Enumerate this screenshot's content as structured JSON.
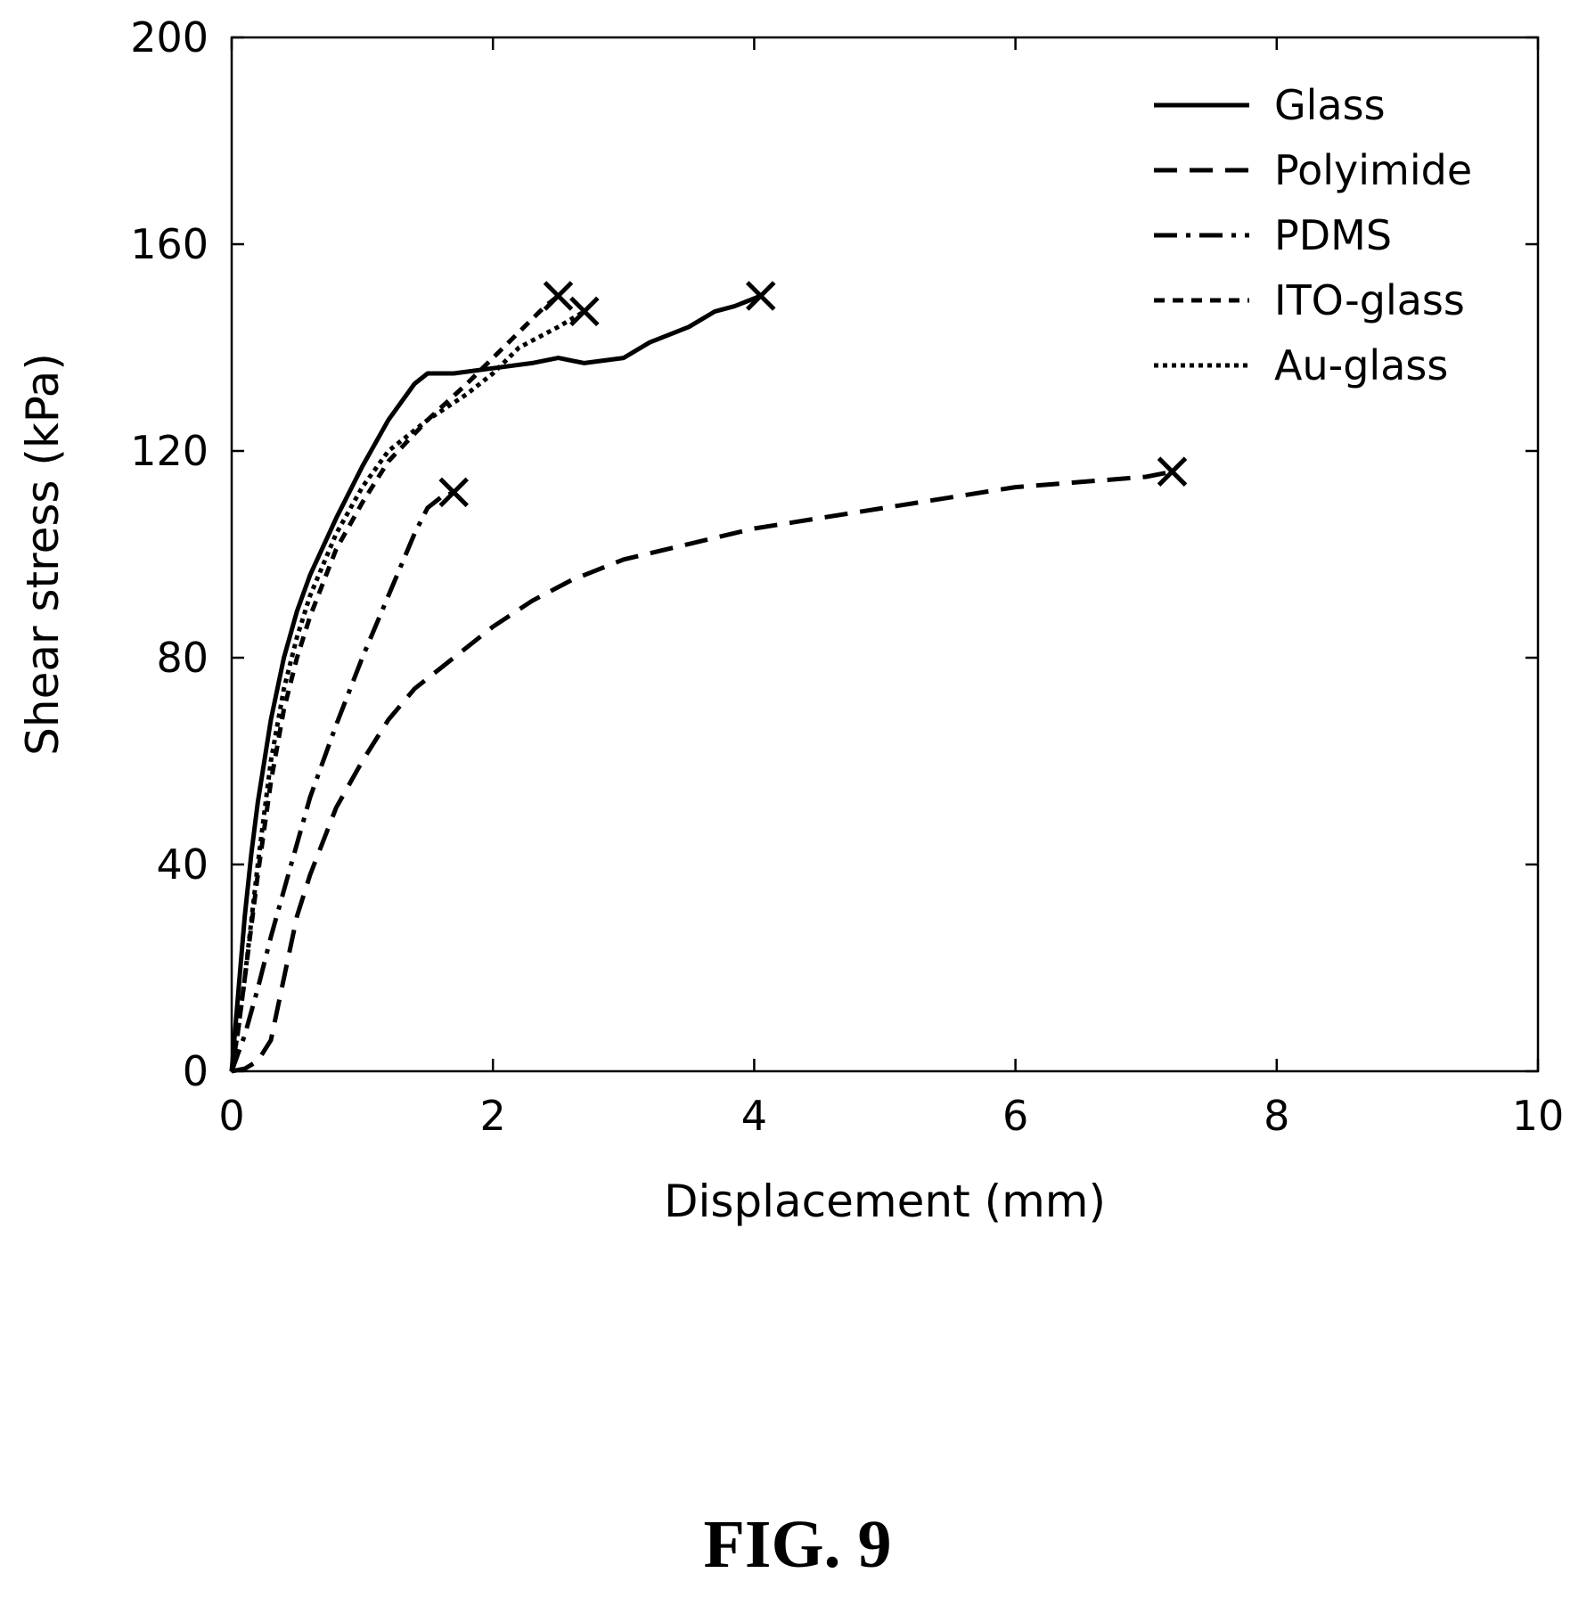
{
  "figure_label": "FIG. 9",
  "chart_data": {
    "type": "line",
    "xlabel": "Displacement (mm)",
    "ylabel": "Shear stress (kPa)",
    "xlim": [
      0,
      10
    ],
    "ylim": [
      0,
      200
    ],
    "xticks": [
      0,
      2,
      4,
      6,
      8,
      10
    ],
    "yticks": [
      0,
      40,
      80,
      120,
      160,
      200
    ],
    "grid": false,
    "legend_position": "top-right",
    "series": [
      {
        "name": "Glass",
        "line_style": "solid",
        "failure_marker": "x",
        "x": [
          0,
          0.05,
          0.1,
          0.15,
          0.2,
          0.3,
          0.4,
          0.5,
          0.6,
          0.8,
          1.0,
          1.2,
          1.4,
          1.5,
          1.7,
          2.0,
          2.3,
          2.5,
          2.7,
          3.0,
          3.2,
          3.5,
          3.7,
          3.85,
          4.05
        ],
        "y": [
          0,
          15,
          30,
          42,
          52,
          68,
          80,
          89,
          96,
          107,
          117,
          126,
          133,
          135,
          135,
          136,
          137,
          138,
          137,
          138,
          141,
          144,
          147,
          148,
          150
        ]
      },
      {
        "name": "Polyimide",
        "line_style": "dashed",
        "failure_marker": "x",
        "x": [
          0,
          0.1,
          0.2,
          0.3,
          0.4,
          0.5,
          0.6,
          0.8,
          1.0,
          1.2,
          1.4,
          1.6,
          1.8,
          2.0,
          2.3,
          2.6,
          3.0,
          3.5,
          4.0,
          4.5,
          5.0,
          5.5,
          6.0,
          6.5,
          7.0,
          7.2
        ],
        "y": [
          0,
          0.5,
          2,
          6,
          18,
          30,
          38,
          51,
          60,
          68,
          74,
          78,
          82,
          86,
          91,
          95,
          99,
          102,
          105,
          107,
          109,
          111,
          113,
          114,
          115,
          116
        ]
      },
      {
        "name": "PDMS",
        "line_style": "dash-dot",
        "failure_marker": "x",
        "x": [
          0,
          0.1,
          0.2,
          0.3,
          0.4,
          0.5,
          0.6,
          0.8,
          1.0,
          1.2,
          1.4,
          1.5,
          1.6,
          1.7
        ],
        "y": [
          0,
          7,
          16,
          26,
          35,
          44,
          53,
          67,
          80,
          92,
          104,
          109,
          111,
          112
        ]
      },
      {
        "name": "ITO-glass",
        "line_style": "short-dashed",
        "failure_marker": "x",
        "x": [
          0,
          0.05,
          0.1,
          0.2,
          0.3,
          0.4,
          0.5,
          0.6,
          0.8,
          1.0,
          1.2,
          1.5,
          1.8,
          2.0,
          2.2,
          2.4,
          2.5
        ],
        "y": [
          0,
          8,
          18,
          38,
          56,
          70,
          80,
          88,
          101,
          110,
          118,
          126,
          133,
          138,
          143,
          148,
          150
        ]
      },
      {
        "name": "Au-glass",
        "line_style": "dotted",
        "failure_marker": "x",
        "x": [
          0,
          0.05,
          0.1,
          0.2,
          0.3,
          0.4,
          0.5,
          0.6,
          0.8,
          1.0,
          1.2,
          1.5,
          1.8,
          2.0,
          2.2,
          2.5,
          2.7
        ],
        "y": [
          0,
          8,
          18,
          40,
          60,
          74,
          84,
          92,
          104,
          113,
          120,
          126,
          131,
          135,
          140,
          144,
          147
        ]
      }
    ]
  }
}
